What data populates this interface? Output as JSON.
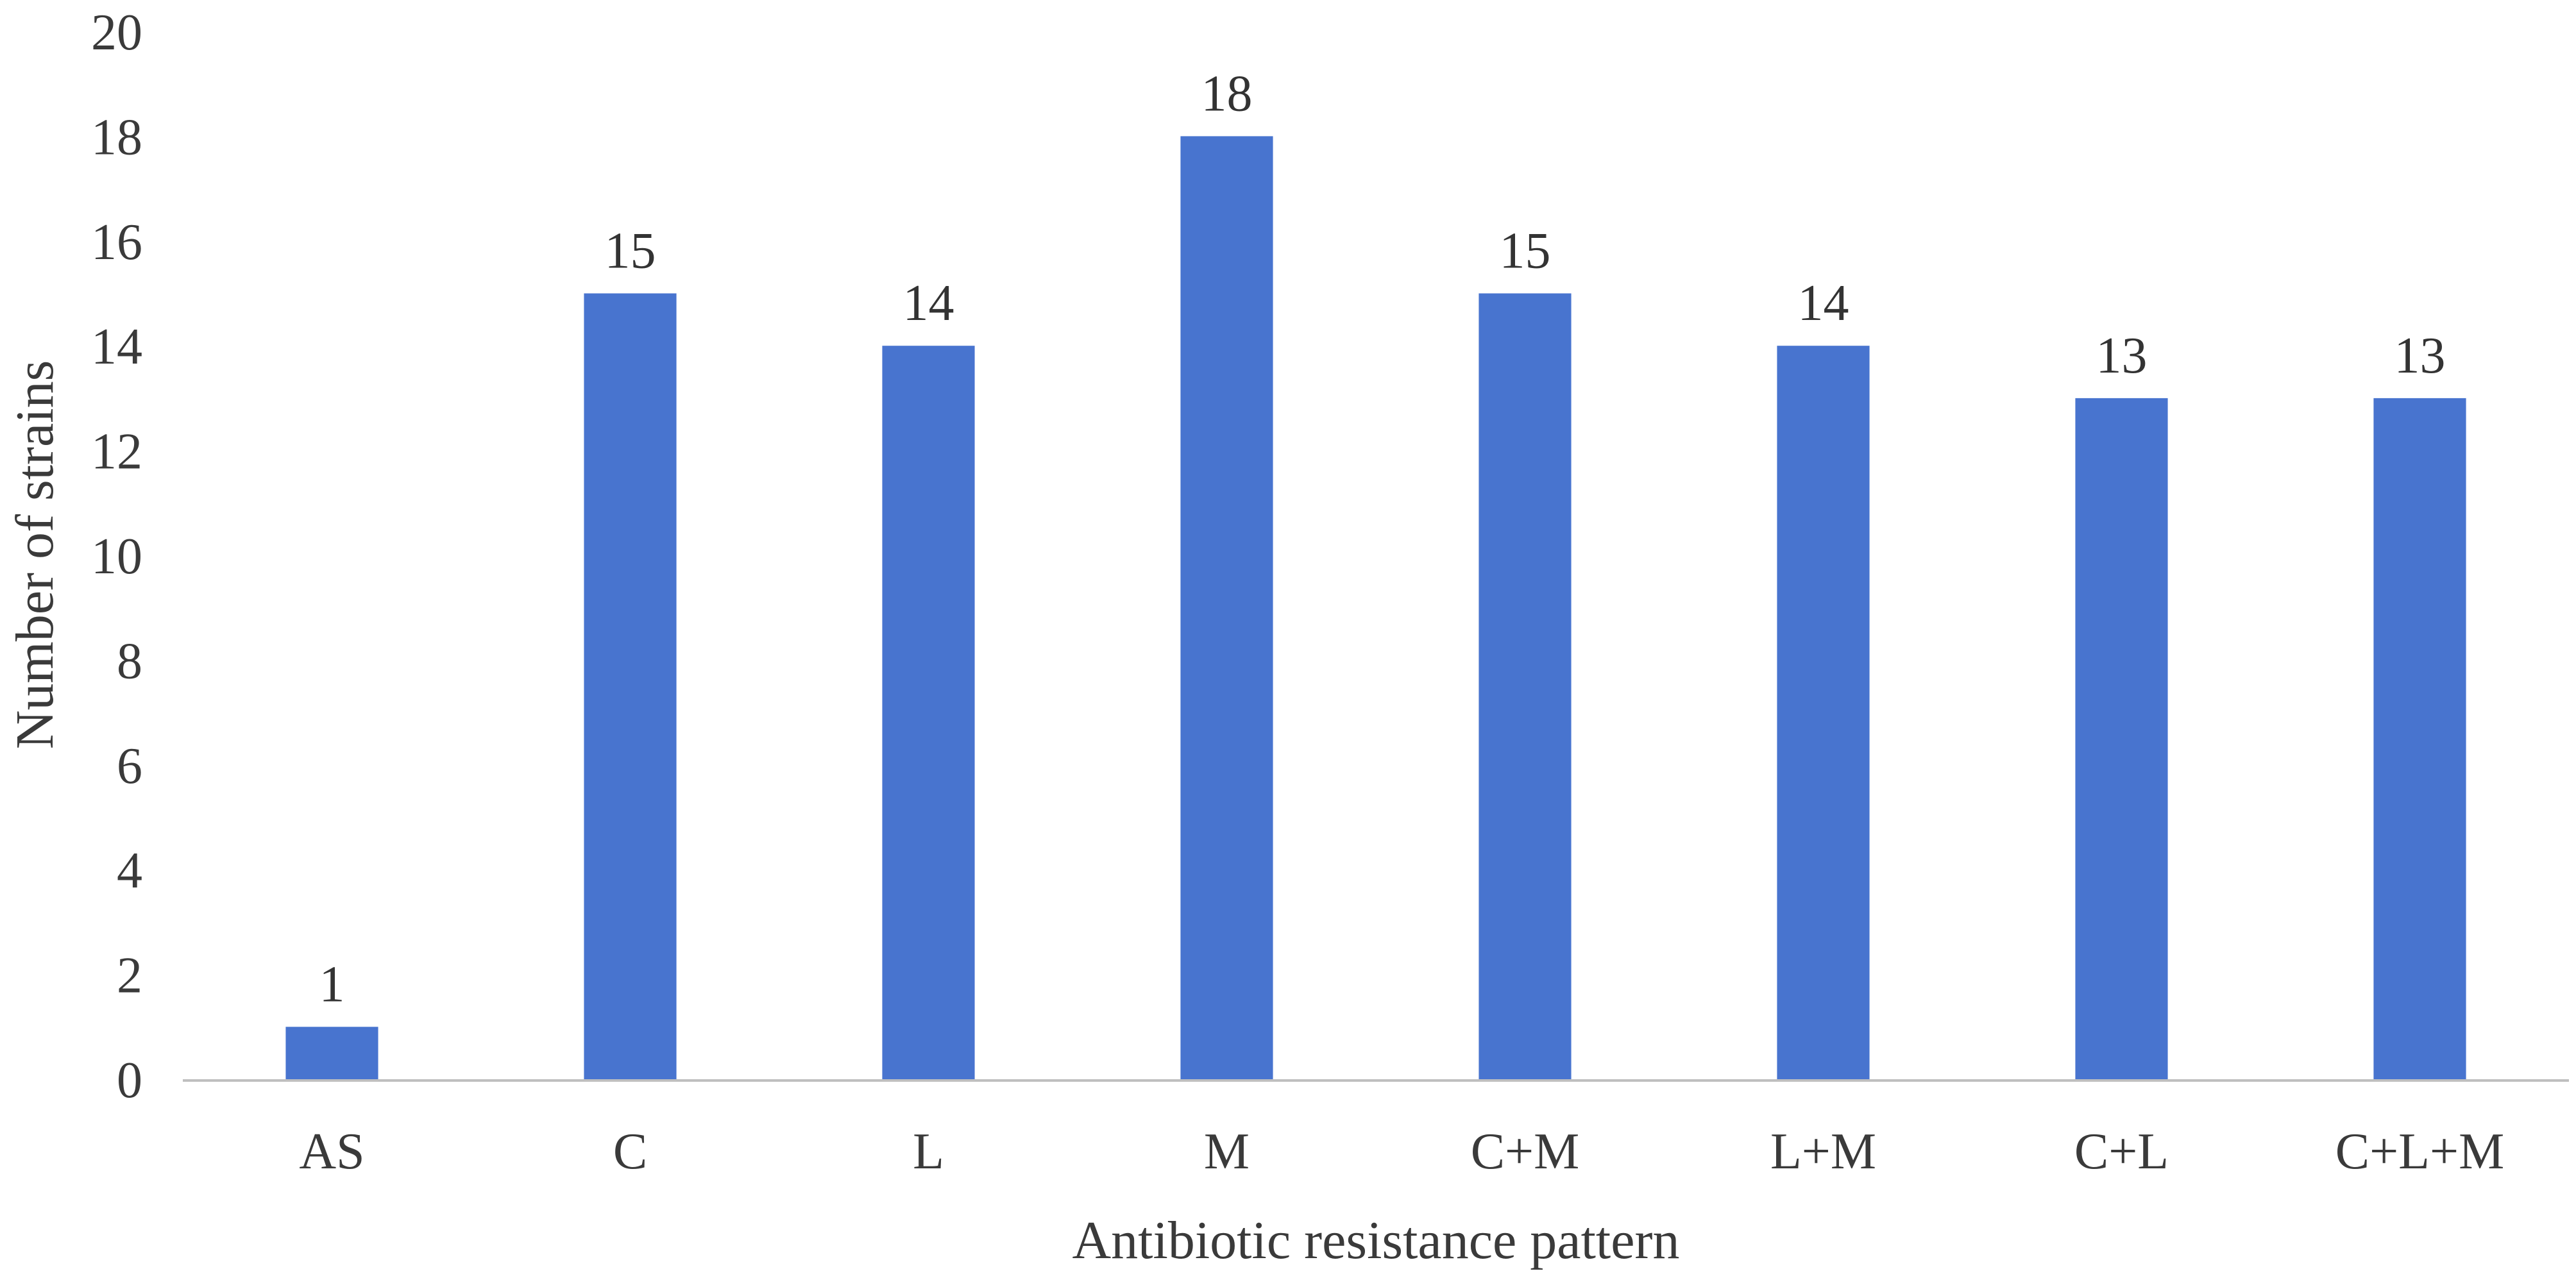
{
  "chart_data": {
    "type": "bar",
    "title": "",
    "xlabel": "Antibiotic resistance pattern",
    "ylabel": "Number of strains",
    "categories": [
      "AS",
      "C",
      "L",
      "M",
      "C+M",
      "L+M",
      "C+L",
      "C+L+M"
    ],
    "values": [
      1,
      15,
      14,
      18,
      15,
      14,
      13,
      13
    ],
    "ylim": [
      0,
      20
    ],
    "yticks": [
      0,
      2,
      4,
      6,
      8,
      10,
      12,
      14,
      16,
      18,
      20
    ],
    "grid": false,
    "legend": "none",
    "bar_color": "#4874CF",
    "axis_color": "#bfbfbf"
  }
}
